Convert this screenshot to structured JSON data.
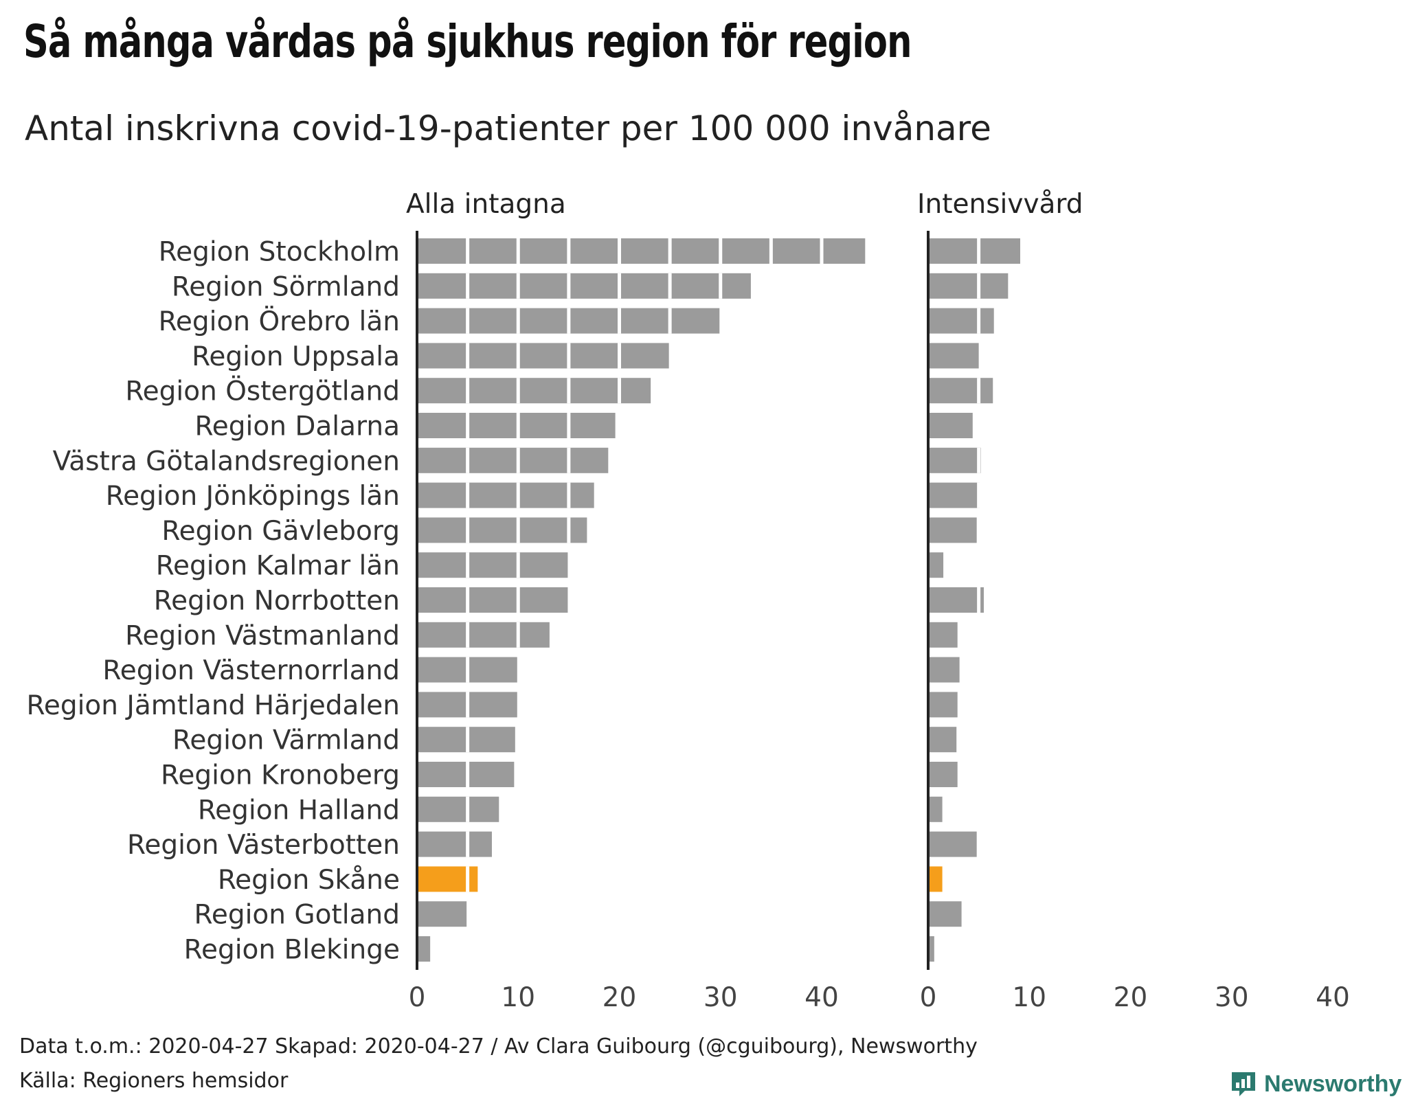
{
  "header": {
    "title": "Så många vårdas på sjukhus region för region",
    "subtitle": "Antal inskrivna covid-19-patienter per 100 000 invånare"
  },
  "chart_data": {
    "type": "bar",
    "orientation": "horizontal",
    "categories": [
      "Region Stockholm",
      "Region Sörmland",
      "Region Örebro län",
      "Region Uppsala",
      "Region Östergötland",
      "Region Dalarna",
      "Västra Götalandsregionen",
      "Region Jönköpings län",
      "Region Gävleborg",
      "Region Kalmar län",
      "Region Norrbotten",
      "Region Västmanland",
      "Region Västernorrland",
      "Region Jämtland Härjedalen",
      "Region Värmland",
      "Region Kronoberg",
      "Region Halland",
      "Region Västerbotten",
      "Region Skåne",
      "Region Gotland",
      "Region Blekinge"
    ],
    "highlight": "Region Skåne",
    "colors": {
      "default": "#9b9b9b",
      "highlight": "#f59e1b",
      "axis": "#222222",
      "segment_gap": "#ffffff"
    },
    "segment_step": 5,
    "xlim": [
      0,
      40
    ],
    "xticks": [
      0,
      10,
      20,
      30,
      40
    ],
    "series": [
      {
        "name": "Alla intagna",
        "values": [
          44.3,
          33.0,
          29.9,
          24.9,
          23.1,
          19.6,
          18.9,
          17.5,
          16.8,
          14.9,
          14.9,
          13.1,
          9.9,
          9.9,
          9.7,
          9.6,
          8.1,
          7.4,
          6.0,
          4.9,
          1.3
        ]
      },
      {
        "name": "Intensivvård",
        "values": [
          9.1,
          7.9,
          6.5,
          5.0,
          6.4,
          4.4,
          5.2,
          5.1,
          4.8,
          1.5,
          5.5,
          2.9,
          3.1,
          2.9,
          2.8,
          2.9,
          1.4,
          4.8,
          1.4,
          3.3,
          0.6
        ]
      }
    ]
  },
  "footer": {
    "credits": "Data t.o.m.: 2020-04-27 Skapad: 2020-04-27 / Av Clara Guibourg (@cguibourg), Newsworthy",
    "source": "Källa: Regioners hemsidor",
    "brand": "Newsworthy",
    "brand_icon": "bar-chart-logo-icon",
    "brand_color": "#2b7a6f"
  }
}
